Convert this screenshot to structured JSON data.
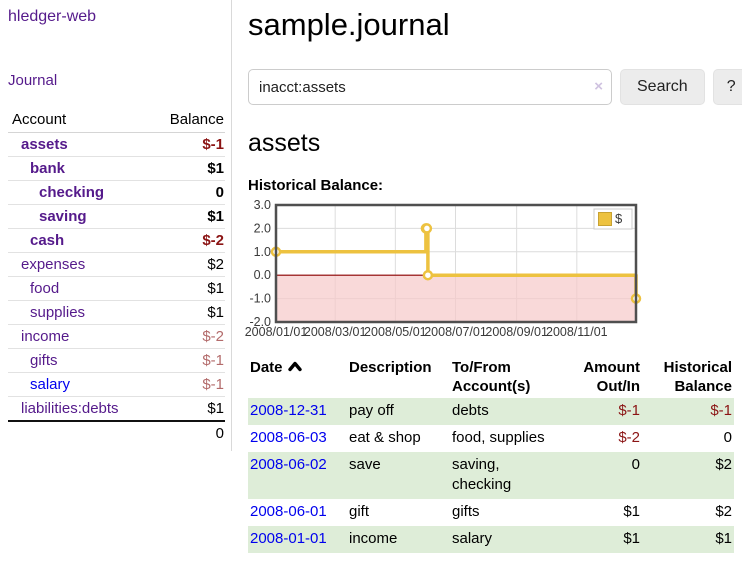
{
  "app": {
    "brand": "hledger-web"
  },
  "sidebar": {
    "journal_link": "Journal",
    "accounts_table": {
      "headers": {
        "account": "Account",
        "balance": "Balance"
      },
      "rows": [
        {
          "account": "assets",
          "balance": "$-1",
          "level": 1,
          "bold": true,
          "balance_style": "neg-strong",
          "link_style": "purple"
        },
        {
          "account": "bank",
          "balance": "$1",
          "level": 2,
          "bold": true,
          "balance_style": "pos-strong",
          "link_style": "purple"
        },
        {
          "account": "checking",
          "balance": "0",
          "level": 3,
          "bold": true,
          "balance_style": "pos-strong",
          "link_style": "purple"
        },
        {
          "account": "saving",
          "balance": "$1",
          "level": 3,
          "bold": true,
          "balance_style": "pos-strong",
          "link_style": "purple"
        },
        {
          "account": "cash",
          "balance": "$-2",
          "level": 2,
          "bold": true,
          "balance_style": "neg-strong",
          "link_style": "purple"
        },
        {
          "account": "expenses",
          "balance": "$2",
          "level": 1,
          "bold": false,
          "balance_style": "",
          "link_style": "purple"
        },
        {
          "account": "food",
          "balance": "$1",
          "level": 2,
          "bold": false,
          "balance_style": "",
          "link_style": "purple"
        },
        {
          "account": "supplies",
          "balance": "$1",
          "level": 2,
          "bold": false,
          "balance_style": "",
          "link_style": "purple"
        },
        {
          "account": "income",
          "balance": "$-2",
          "level": 1,
          "bold": false,
          "balance_style": "neg-muted",
          "link_style": "purple"
        },
        {
          "account": "gifts",
          "balance": "$-1",
          "level": 2,
          "bold": false,
          "balance_style": "neg-muted",
          "link_style": "purple"
        },
        {
          "account": "salary",
          "balance": "$-1",
          "level": 2,
          "bold": false,
          "balance_style": "neg-muted",
          "link_style": "blue"
        },
        {
          "account": "liabilities:debts",
          "balance": "$1",
          "level": 1,
          "bold": false,
          "balance_style": "",
          "link_style": "purple"
        }
      ],
      "total": "0"
    }
  },
  "header": {
    "title": "sample.journal"
  },
  "search": {
    "value": "inacct:assets",
    "clear_icon": "×",
    "button_label": "Search",
    "help_label": "?"
  },
  "account_page": {
    "heading": "assets",
    "chart_label": "Historical Balance:"
  },
  "chart_data": {
    "type": "line",
    "step": true,
    "title": "Historical Balance",
    "x_min": "2008-01-01",
    "x_max": "2008-12-31",
    "ylim": [
      -2.0,
      3.0
    ],
    "y_ticks": [
      3.0,
      2.0,
      1.0,
      0.0,
      -1.0,
      -2.0
    ],
    "x_tick_labels": [
      "2008/01/01",
      "2008/03/01",
      "2008/05/01",
      "2008/07/01",
      "2008/09/01",
      "2008/11/01"
    ],
    "grid": true,
    "legend": {
      "position": "top-right",
      "entries": [
        {
          "label": "$",
          "color": "#edc240"
        }
      ]
    },
    "series": [
      {
        "name": "$",
        "color": "#edc240",
        "points": [
          {
            "date": "2008-01-01",
            "value": 1.0
          },
          {
            "date": "2008-06-01",
            "value": 2.0
          },
          {
            "date": "2008-06-02",
            "value": 2.0
          },
          {
            "date": "2008-06-03",
            "value": 0.0
          },
          {
            "date": "2008-12-31",
            "value": -1.0
          }
        ]
      }
    ],
    "negative_region_fill": "#f6c9c9",
    "zero_line_color": "#8b0000",
    "border_color": "#4f4f4f",
    "gridline_color": "#dcdcdc"
  },
  "register": {
    "headers": {
      "date": "Date",
      "description": "Description",
      "tofrom": "To/From\nAccount(s)",
      "amount": "Amount\nOut/In",
      "balance": "Historical\nBalance"
    },
    "sort": {
      "column": "date",
      "direction": "asc",
      "icon": "chevron-up"
    },
    "rows": [
      {
        "date": "2008-12-31",
        "description": "pay off",
        "tofrom": "debts",
        "amount": "$-1",
        "balance": "$-1",
        "amount_neg": true,
        "balance_neg": true,
        "shade": true
      },
      {
        "date": "2008-06-03",
        "description": "eat & shop",
        "tofrom": "food, supplies",
        "amount": "$-2",
        "balance": "0",
        "amount_neg": true,
        "balance_neg": false,
        "shade": false
      },
      {
        "date": "2008-06-02",
        "description": "save",
        "tofrom": "saving,\nchecking",
        "amount": "0",
        "balance": "$2",
        "amount_neg": false,
        "balance_neg": false,
        "shade": true
      },
      {
        "date": "2008-06-01",
        "description": "gift",
        "tofrom": "gifts",
        "amount": "$1",
        "balance": "$2",
        "amount_neg": false,
        "balance_neg": false,
        "shade": false
      },
      {
        "date": "2008-01-01",
        "description": "income",
        "tofrom": "salary",
        "amount": "$1",
        "balance": "$1",
        "amount_neg": false,
        "balance_neg": false,
        "shade": true
      }
    ]
  },
  "colors": {
    "link_purple": "#551a8b",
    "link_blue": "#0000ee",
    "negative_strong": "#8b1414",
    "negative_muted": "#b36b6b",
    "stripe_green": "#deedd8",
    "series_yellow": "#edc240"
  }
}
